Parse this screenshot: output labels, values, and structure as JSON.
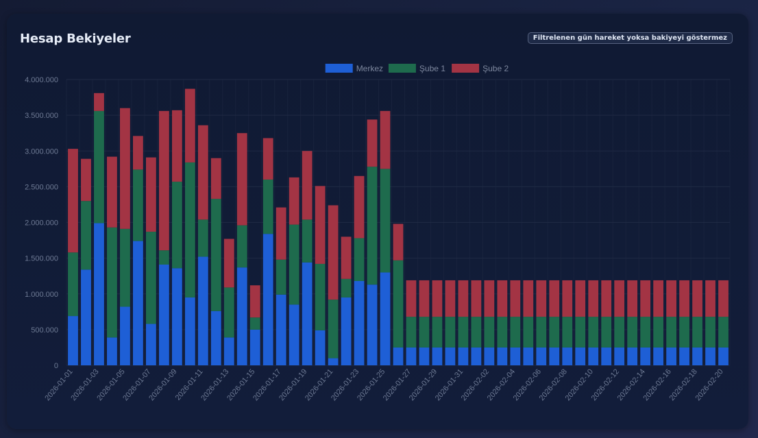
{
  "header": {
    "title": "Hesap Bekiyeler",
    "toggle_label": "Filtrelenen gün hareket yoksa bakiyeyi göstermez"
  },
  "colors": {
    "Merkez": "#1e5fd6",
    "Şube 1": "#1e6b4d",
    "Şube 2": "#a33444",
    "grid": "#1f2a44",
    "tick": "#6e7a94"
  },
  "chart_data": {
    "type": "bar",
    "stacked": true,
    "title": "Hesap Bekiyeler",
    "ylim": [
      0,
      4000000
    ],
    "y_ticks": [
      0,
      500000,
      1000000,
      1500000,
      2000000,
      2500000,
      3000000,
      3500000,
      4000000
    ],
    "y_tick_labels": [
      "0",
      "500.000",
      "1.000.000",
      "1.500.000",
      "2.000.000",
      "2.500.000",
      "3.000.000",
      "3.500.000",
      "4.000.000"
    ],
    "legend_position": "top-center",
    "grid": true,
    "categories": [
      "2026-01-01",
      "2026-01-02",
      "2026-01-03",
      "2026-01-04",
      "2026-01-05",
      "2026-01-06",
      "2026-01-07",
      "2026-01-08",
      "2026-01-09",
      "2026-01-10",
      "2026-01-11",
      "2026-01-12",
      "2026-01-13",
      "2026-01-14",
      "2026-01-15",
      "2026-01-16",
      "2026-01-17",
      "2026-01-18",
      "2026-01-19",
      "2026-01-20",
      "2026-01-21",
      "2026-01-22",
      "2026-01-23",
      "2026-01-24",
      "2026-01-25",
      "2026-01-26",
      "2026-01-27",
      "2026-01-28",
      "2026-01-29",
      "2026-01-30",
      "2026-01-31",
      "2026-02-01",
      "2026-02-02",
      "2026-02-03",
      "2026-02-04",
      "2026-02-05",
      "2026-02-06",
      "2026-02-07",
      "2026-02-08",
      "2026-02-09",
      "2026-02-10",
      "2026-02-11",
      "2026-02-12",
      "2026-02-13",
      "2026-02-14",
      "2026-02-15",
      "2026-02-16",
      "2026-02-17",
      "2026-02-18",
      "2026-02-19",
      "2026-02-20"
    ],
    "x_tick_labels": [
      "2026-01-01",
      "2026-01-03",
      "2026-01-05",
      "2026-01-07",
      "2026-01-09",
      "2026-01-11",
      "2026-01-13",
      "2026-01-15",
      "2026-01-17",
      "2026-01-19",
      "2026-01-21",
      "2026-01-23",
      "2026-01-25",
      "2026-01-27",
      "2026-01-29",
      "2026-01-31",
      "2026-02-02",
      "2026-02-04",
      "2026-02-06",
      "2026-02-08",
      "2026-02-10",
      "2026-02-12",
      "2026-02-14",
      "2026-02-16",
      "2026-02-18",
      "2026-02-20"
    ],
    "series": [
      {
        "name": "Merkez",
        "values": [
          690000,
          1340000,
          1990000,
          390000,
          820000,
          1740000,
          580000,
          1410000,
          1360000,
          950000,
          1520000,
          760000,
          390000,
          1370000,
          500000,
          1840000,
          990000,
          850000,
          1440000,
          490000,
          100000,
          950000,
          1180000,
          1130000,
          1300000,
          250000,
          250000,
          250000,
          250000,
          250000,
          250000,
          250000,
          250000,
          250000,
          250000,
          250000,
          250000,
          250000,
          250000,
          250000,
          250000,
          250000,
          250000,
          250000,
          250000,
          250000,
          250000,
          250000,
          250000,
          250000,
          250000
        ]
      },
      {
        "name": "Şube 1",
        "values": [
          890000,
          960000,
          1570000,
          1540000,
          1090000,
          1000000,
          1290000,
          200000,
          1210000,
          1890000,
          520000,
          1570000,
          700000,
          590000,
          170000,
          760000,
          490000,
          1120000,
          600000,
          930000,
          820000,
          260000,
          600000,
          1650000,
          1450000,
          1220000,
          430000,
          430000,
          430000,
          430000,
          430000,
          430000,
          430000,
          430000,
          430000,
          430000,
          430000,
          430000,
          430000,
          430000,
          430000,
          430000,
          430000,
          430000,
          430000,
          430000,
          430000,
          430000,
          430000,
          430000,
          430000
        ]
      },
      {
        "name": "Şube 2",
        "values": [
          1450000,
          590000,
          250000,
          990000,
          1690000,
          470000,
          1040000,
          1950000,
          1000000,
          1030000,
          1320000,
          570000,
          680000,
          1290000,
          450000,
          580000,
          730000,
          660000,
          960000,
          1090000,
          1320000,
          590000,
          870000,
          660000,
          810000,
          510000,
          510000,
          510000,
          510000,
          510000,
          510000,
          510000,
          510000,
          510000,
          510000,
          510000,
          510000,
          510000,
          510000,
          510000,
          510000,
          510000,
          510000,
          510000,
          510000,
          510000,
          510000,
          510000,
          510000,
          510000,
          510000
        ]
      }
    ]
  }
}
